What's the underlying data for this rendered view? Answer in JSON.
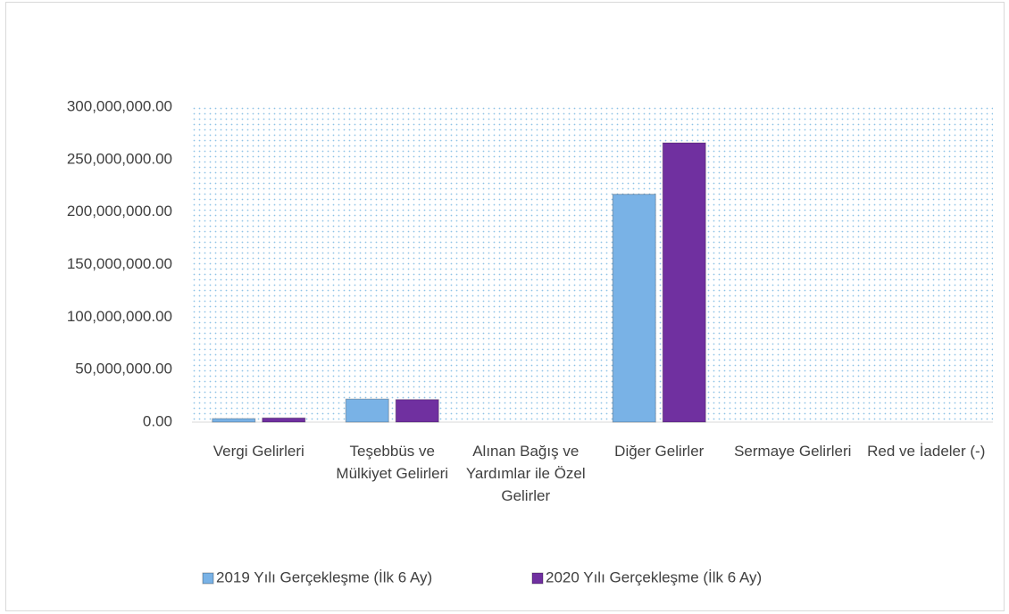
{
  "chart_data": {
    "type": "bar",
    "categories": [
      "Vergi Gelirleri",
      "Teşebbüs ve Mülkiyet Gelirleri",
      "Alınan Bağış ve Yardımlar ile Özel Gelirler",
      "Diğer Gelirler",
      "Sermaye Gelirleri",
      "Red ve İadeler (-)"
    ],
    "series": [
      {
        "name": "2019 Yılı Gerçekleşme (İlk 6 Ay)",
        "color": "#79b2e6",
        "values": [
          3400000,
          22000000,
          0,
          217000000,
          0,
          0
        ]
      },
      {
        "name": "2020 Yılı Gerçekleşme (İlk 6 Ay)",
        "color": "#7030a0",
        "values": [
          4000000,
          21500000,
          0,
          266000000,
          0,
          0
        ]
      }
    ],
    "ylim": [
      0,
      300000000
    ],
    "yticks": [
      {
        "value": 0,
        "label": "0.00"
      },
      {
        "value": 50000000,
        "label": "50,000,000.00"
      },
      {
        "value": 100000000,
        "label": "100,000,000.00"
      },
      {
        "value": 150000000,
        "label": "150,000,000.00"
      },
      {
        "value": 200000000,
        "label": "200,000,000.00"
      },
      {
        "value": 250000000,
        "label": "250,000,000.00"
      },
      {
        "value": 300000000,
        "label": "300,000,000.00"
      }
    ],
    "grid": true,
    "legend": "bottom"
  }
}
